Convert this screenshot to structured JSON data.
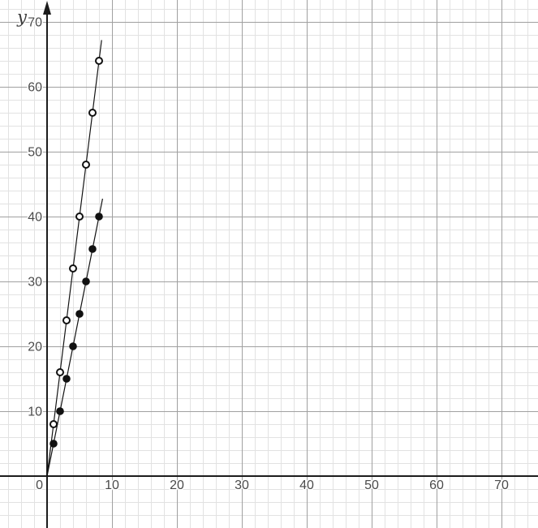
{
  "chart_data": {
    "type": "scatter",
    "title": "",
    "xlabel": "",
    "ylabel": "y",
    "xlim": [
      -7.25,
      75.625
    ],
    "ylim": [
      -8.0,
      73.375
    ],
    "grid": {
      "visible": true,
      "minor_step": 2,
      "major_step": 10
    },
    "x_ticks": [
      10,
      20,
      30,
      40,
      50,
      60,
      70
    ],
    "y_ticks": [
      10,
      20,
      30,
      40,
      50,
      60,
      70
    ],
    "origin_label": "0",
    "y_axis_arrow": true,
    "series": [
      {
        "name": "steeper-line-open-points",
        "marker": "open-circle",
        "x": [
          1,
          2,
          3,
          4,
          5,
          6,
          7,
          8
        ],
        "y": [
          8,
          16,
          24,
          32,
          40,
          48,
          56,
          64
        ],
        "line_start": [
          0,
          0
        ],
        "line_end": [
          8.4,
          67.2
        ]
      },
      {
        "name": "shallower-line-filled-points",
        "marker": "filled-circle",
        "x": [
          1,
          2,
          3,
          4,
          5,
          6,
          7,
          8
        ],
        "y": [
          5,
          10,
          15,
          20,
          25,
          30,
          35,
          40
        ],
        "line_start": [
          0,
          0
        ],
        "line_end": [
          8.55,
          42.75
        ]
      }
    ],
    "colors": {
      "background": "#ffffff",
      "grid_minor": "#e2e2e2",
      "grid_major": "#a0a0a0",
      "axis": "#1c1c1c",
      "series": "#111111",
      "tick_label": "#4a4a4a",
      "axis_label": "#3a3a3a"
    }
  }
}
